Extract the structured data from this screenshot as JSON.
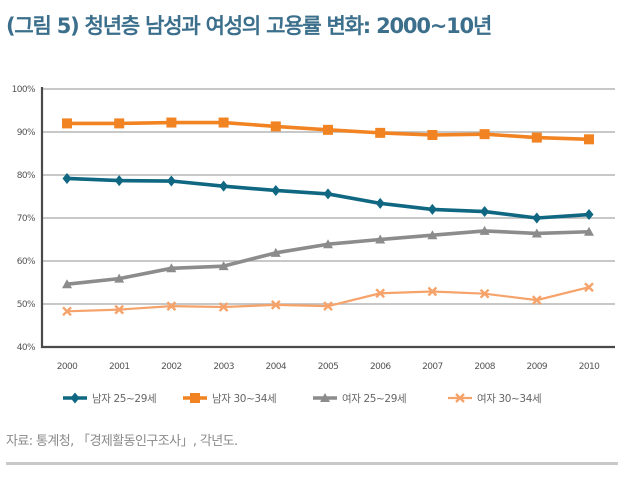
{
  "title": "(그림 5) 청년층 남성과 여성의 고용률 변화: 2000~10년",
  "source": "자료: 통계청, 「경제활동인구조사」, 각년도.",
  "chart_data": {
    "type": "line",
    "title": "(그림 5) 청년층 남성과 여성의 고용률 변화: 2000~10년",
    "xlabel": "",
    "ylabel": "",
    "categories": [
      "2000",
      "2001",
      "2002",
      "2003",
      "2004",
      "2005",
      "2006",
      "2007",
      "2008",
      "2009",
      "2010"
    ],
    "ylim": [
      40,
      100
    ],
    "yticks": [
      40,
      50,
      60,
      70,
      80,
      90,
      100
    ],
    "ytick_labels": [
      "40%",
      "50%",
      "60%",
      "70%",
      "80%",
      "90%",
      "100%"
    ],
    "grid": true,
    "legend_position": "bottom",
    "series": [
      {
        "name": "남자 25~29세",
        "color": "#0f6781",
        "marker": "diamond",
        "values": [
          79.2,
          78.7,
          78.6,
          77.4,
          76.4,
          75.6,
          73.4,
          72.0,
          71.5,
          70.0,
          70.8
        ]
      },
      {
        "name": "남자 30~34세",
        "color": "#f28322",
        "marker": "square",
        "values": [
          92.0,
          92.0,
          92.2,
          92.2,
          91.3,
          90.5,
          89.8,
          89.3,
          89.5,
          88.7,
          88.3
        ]
      },
      {
        "name": "여자 25~29세",
        "color": "#8c8c8c",
        "marker": "triangle",
        "values": [
          54.6,
          55.9,
          58.3,
          58.8,
          61.9,
          63.9,
          65.0,
          66.0,
          67.0,
          66.4,
          66.8
        ]
      },
      {
        "name": "여자 30~34세",
        "color": "#f5a36a",
        "marker": "x",
        "values": [
          48.3,
          48.7,
          49.5,
          49.3,
          49.8,
          49.5,
          52.5,
          52.9,
          52.4,
          50.9,
          53.9
        ]
      }
    ]
  }
}
